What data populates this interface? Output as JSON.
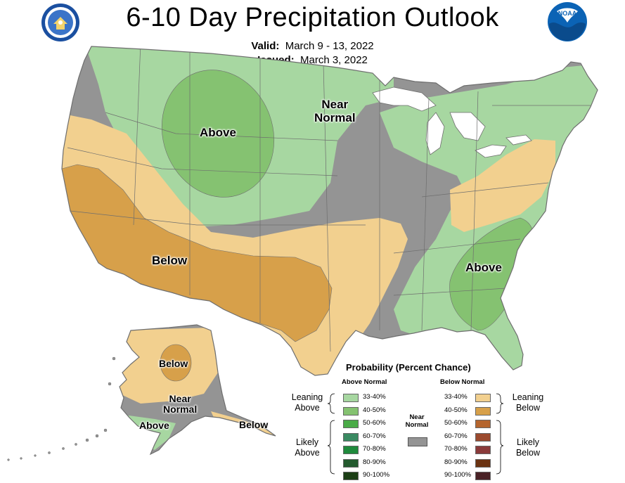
{
  "header": {
    "title": "6-10 Day Precipitation Outlook",
    "valid_label": "Valid:",
    "valid_value": "March 9 - 13, 2022",
    "issued_label": "Issued:",
    "issued_value": "March 3, 2022"
  },
  "logos": {
    "left": "doc-seal-icon",
    "right": "noaa-logo-icon",
    "right_text": "NOAA"
  },
  "map_labels": {
    "above_north": "Above",
    "near_normal_north": "Near\nNormal",
    "below_southwest": "Below",
    "above_southeast": "Above",
    "alaska_below": "Below",
    "alaska_near_normal": "Near\nNormal",
    "alaska_above": "Above",
    "alaska_below_se": "Below"
  },
  "colors": {
    "leaning_above": "#a7d7a1",
    "above_40_50": "#85c271",
    "leaning_below": "#f2d08f",
    "below_40_50": "#d7a04a",
    "near_normal": "#949494",
    "border": "#6e6e6e",
    "lakes": "#ffffff"
  },
  "legend": {
    "title": "Probability (Percent Chance)",
    "above_header": "Above Normal",
    "below_header": "Below Normal",
    "near_normal": "Near\nNormal",
    "above_items": [
      {
        "label": "33-40%",
        "color": "#a7d7a1"
      },
      {
        "label": "40-50%",
        "color": "#85c271"
      },
      {
        "label": "50-60%",
        "color": "#4aab47"
      },
      {
        "label": "60-70%",
        "color": "#3a8a62"
      },
      {
        "label": "70-80%",
        "color": "#1f8a3c"
      },
      {
        "label": "80-90%",
        "color": "#245a2e"
      },
      {
        "label": "90-100%",
        "color": "#1c3f16"
      }
    ],
    "below_items": [
      {
        "label": "33-40%",
        "color": "#f2d08f"
      },
      {
        "label": "40-50%",
        "color": "#d7a04a"
      },
      {
        "label": "50-60%",
        "color": "#b5652d"
      },
      {
        "label": "60-70%",
        "color": "#9b4a2e"
      },
      {
        "label": "70-80%",
        "color": "#8a3a3a"
      },
      {
        "label": "80-90%",
        "color": "#6b3312"
      },
      {
        "label": "90-100%",
        "color": "#4a2226"
      }
    ],
    "leaning_above": "Leaning\nAbove",
    "likely_above": "Likely\nAbove",
    "leaning_below": "Leaning\nBelow",
    "likely_below": "Likely\nBelow"
  }
}
